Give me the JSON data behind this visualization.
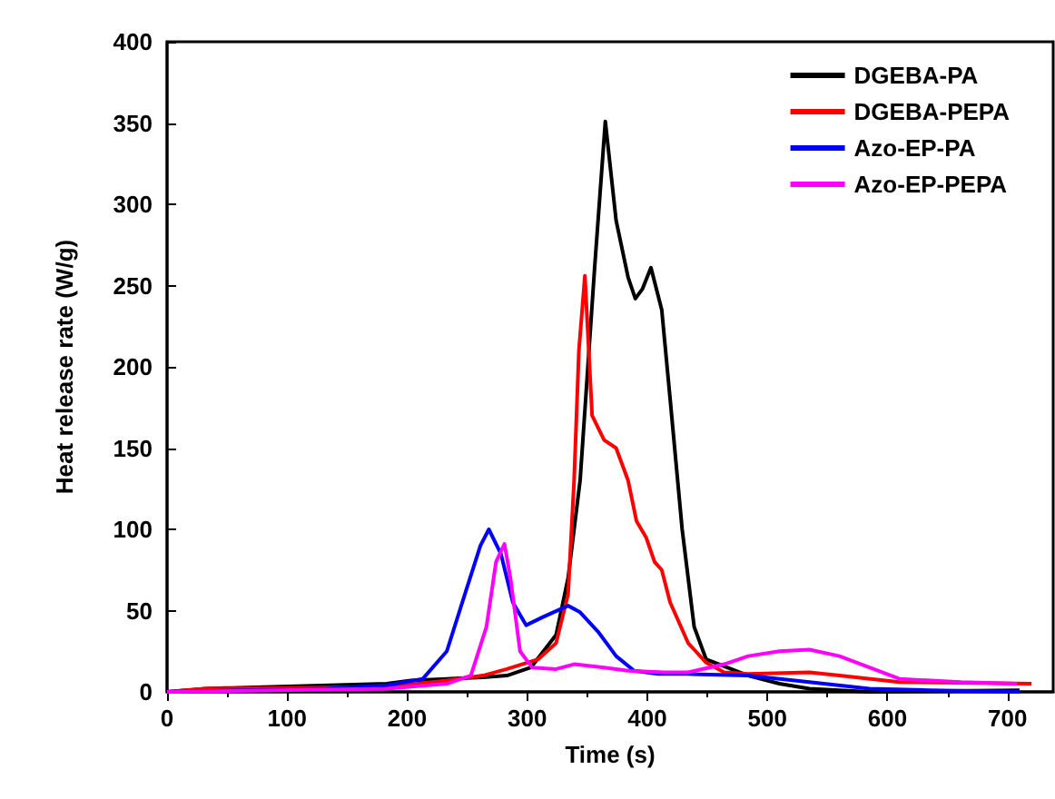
{
  "chart_data": {
    "type": "line",
    "xlabel": "Time (s)",
    "ylabel": "Heat release rate (W/g)",
    "xlim": [
      0,
      738
    ],
    "ylim": [
      0,
      400
    ],
    "xticks": [
      0,
      100,
      200,
      300,
      400,
      500,
      600,
      700
    ],
    "yticks": [
      0,
      50,
      100,
      150,
      200,
      250,
      300,
      350,
      400
    ],
    "grid": false,
    "legend": "top right",
    "marker": "none",
    "line_style": "solid",
    "series": [
      {
        "name": "DGEBA-PA",
        "color": "#000000",
        "x": [
          0,
          32,
          183,
          203,
          233,
          263,
          283,
          303,
          324,
          334,
          344,
          356,
          365,
          374,
          384,
          390,
          396,
          403,
          412,
          419,
          429,
          439,
          449,
          484,
          510,
          535,
          585,
          710
        ],
        "values": [
          0,
          2,
          5,
          7,
          8,
          9,
          10,
          15,
          35,
          70,
          130,
          260,
          351,
          290,
          255,
          242,
          248,
          261,
          235,
          180,
          100,
          40,
          20,
          10,
          5,
          2,
          0,
          1
        ]
      },
      {
        "name": "DGEBA-PEPA",
        "color": "#ff0000",
        "x": [
          0,
          32,
          183,
          233,
          263,
          283,
          309,
          324,
          334,
          339,
          343,
          348,
          354,
          364,
          374,
          384,
          391,
          399,
          406,
          412,
          419,
          434,
          449,
          464,
          484,
          535,
          560,
          610,
          720
        ],
        "values": [
          0,
          2,
          3,
          7,
          10,
          14,
          20,
          30,
          60,
          130,
          210,
          256,
          170,
          155,
          150,
          130,
          105,
          95,
          80,
          75,
          55,
          30,
          18,
          12,
          11,
          12,
          10,
          6,
          5
        ]
      },
      {
        "name": "Azo-EP-PA",
        "color": "#0000ff",
        "x": [
          0,
          133,
          183,
          213,
          233,
          248,
          261,
          268,
          278,
          288,
          299,
          313,
          334,
          344,
          359,
          374,
          389,
          409,
          434,
          484,
          535,
          585,
          635,
          710
        ],
        "values": [
          0,
          2,
          4,
          8,
          25,
          60,
          90,
          100,
          85,
          55,
          41,
          46,
          53,
          49,
          37,
          22,
          13,
          11,
          11,
          10,
          6,
          2,
          1,
          0
        ]
      },
      {
        "name": "Azo-EP-PEPA",
        "color": "#ff00ff",
        "x": [
          0,
          183,
          233,
          253,
          266,
          274,
          281,
          286,
          294,
          304,
          324,
          339,
          364,
          384,
          414,
          434,
          464,
          484,
          510,
          535,
          560,
          585,
          610,
          661,
          708
        ],
        "values": [
          0,
          2,
          5,
          10,
          40,
          80,
          91,
          70,
          25,
          15,
          14,
          17,
          15,
          13,
          12,
          12,
          17,
          22,
          25,
          26,
          22,
          15,
          8,
          6,
          5
        ]
      }
    ]
  }
}
